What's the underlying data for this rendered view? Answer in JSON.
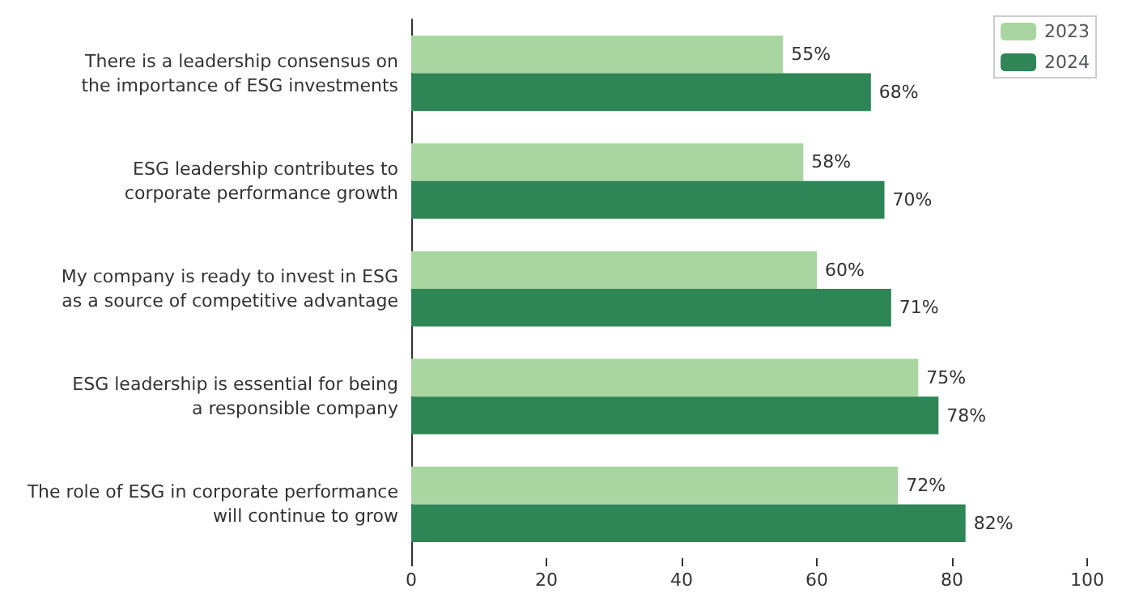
{
  "chart_data": {
    "type": "bar",
    "orientation": "horizontal",
    "categories": [
      "There is a leadership consensus on\nthe importance of ESG investments",
      "ESG leadership contributes to\ncorporate performance growth",
      "My company is ready to invest in ESG\nas a source of competitive advantage",
      "ESG leadership is essential for being\na responsible company",
      "The role of ESG in corporate performance\nwill continue to grow"
    ],
    "series": [
      {
        "name": "2023",
        "color": "#a8d5a0",
        "values": [
          55,
          58,
          60,
          75,
          72
        ],
        "value_labels": [
          "55%",
          "58%",
          "60%",
          "75%",
          "72%"
        ]
      },
      {
        "name": "2024",
        "color": "#2e8555",
        "values": [
          68,
          70,
          71,
          78,
          82
        ],
        "value_labels": [
          "68%",
          "70%",
          "71%",
          "78%",
          "82%"
        ]
      }
    ],
    "xlim": [
      0,
      100
    ],
    "xticks": [
      0,
      20,
      40,
      60,
      80,
      100
    ],
    "grid": false,
    "legend": "top right"
  }
}
